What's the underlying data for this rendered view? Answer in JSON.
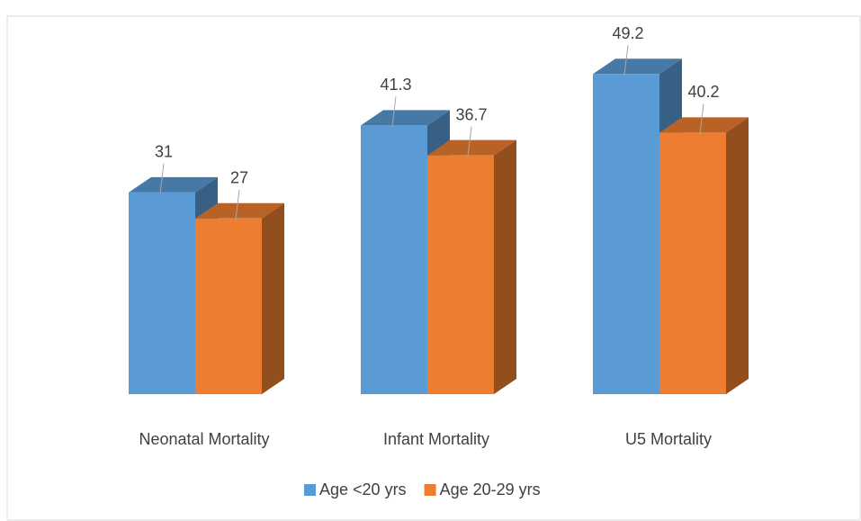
{
  "chart_data": {
    "type": "bar3d",
    "categories": [
      "Neonatal Mortality",
      "Infant Mortality",
      "U5 Mortality"
    ],
    "series": [
      {
        "name": "Age <20 yrs",
        "color": "#5b9bd5",
        "values": [
          31,
          41.3,
          49.2
        ]
      },
      {
        "name": "Age 20-29 yrs",
        "color": "#ed7d31",
        "values": [
          27,
          36.7,
          40.2
        ]
      }
    ],
    "legend": "bottom"
  }
}
